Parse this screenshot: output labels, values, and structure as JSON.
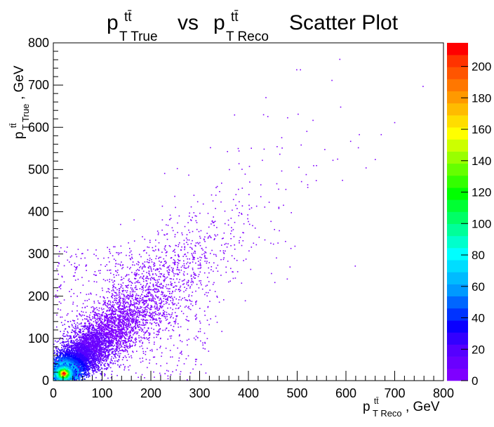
{
  "chart_data": {
    "type": "heatmap",
    "title": {
      "part1_main": "p",
      "part1_sup": "tt̄",
      "part1_sub": "T True",
      "vs": "vs",
      "part2_main": "p",
      "part2_sup": "tt̄",
      "part2_sub": "T Reco",
      "tail": "Scatter Plot"
    },
    "xlabel": {
      "main": "p",
      "sup": "tt̄",
      "sub": "T Reco",
      "unit": ", GeV"
    },
    "ylabel": {
      "main": "p",
      "sup": "tt̄",
      "sub": "T True",
      "unit": ", GeV"
    },
    "xlim": [
      0,
      800
    ],
    "ylim": [
      0,
      800
    ],
    "x_ticks": [
      0,
      100,
      200,
      300,
      400,
      500,
      600,
      700,
      800
    ],
    "y_ticks": [
      0,
      100,
      200,
      300,
      400,
      500,
      600,
      700,
      800
    ],
    "x_tick_labels": [
      "0",
      "100",
      "200",
      "300",
      "400",
      "500",
      "600",
      "700",
      "800"
    ],
    "y_tick_labels": [
      "0",
      "100",
      "200",
      "300",
      "400",
      "500",
      "600",
      "700",
      "800"
    ],
    "grid": false,
    "colorbar": {
      "zlim": [
        0,
        215
      ],
      "ticks": [
        0,
        20,
        40,
        60,
        80,
        100,
        120,
        140,
        160,
        180,
        200
      ],
      "tick_labels": [
        "0",
        "20",
        "40",
        "60",
        "80",
        "100",
        "120",
        "140",
        "160",
        "180",
        "200"
      ],
      "palette": [
        "#7f00ff",
        "#6a00ff",
        "#5500ff",
        "#3300ff",
        "#0a00ff",
        "#0033ff",
        "#0066ff",
        "#0099ff",
        "#00bbff",
        "#00ddff",
        "#00ffff",
        "#00ffcc",
        "#00ff99",
        "#00ff66",
        "#00ff33",
        "#00ff00",
        "#33ff00",
        "#66ff00",
        "#99ff00",
        "#ccff00",
        "#ffff00",
        "#ffdd00",
        "#ffbb00",
        "#ff9900",
        "#ff7700",
        "#ff5500",
        "#ff3300",
        "#ff0000"
      ]
    },
    "distribution": {
      "description_of_trend": "events concentrated along diagonal true ≈ reco, density peaks near (20, 15)",
      "peak": {
        "x": 20,
        "y": 15,
        "z": 210
      }
    }
  }
}
